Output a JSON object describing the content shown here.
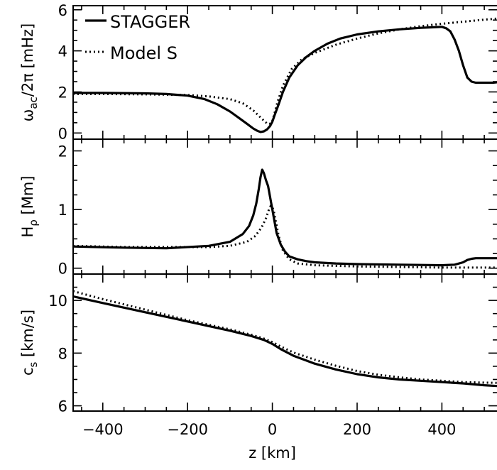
{
  "chart_data": [
    {
      "type": "line",
      "ylabel": "ω_ac/2π [mHz]",
      "ylabel_parts": {
        "main": "ω",
        "sub": "ac",
        "rest": "/2π [mHz]"
      },
      "xlim": [
        -470,
        530
      ],
      "ylim": [
        -0.3,
        6.2
      ],
      "yticks": [
        0,
        2,
        4,
        6
      ],
      "yminor_step": 0.5,
      "legend": {
        "placement": "top-left",
        "entries": [
          "STAGGER",
          "Model S"
        ]
      },
      "series": [
        {
          "name": "STAGGER",
          "style": "solid",
          "x": [
            -470,
            -400,
            -300,
            -250,
            -200,
            -160,
            -130,
            -100,
            -80,
            -60,
            -45,
            -35,
            -28,
            -20,
            -12,
            -5,
            0,
            5,
            15,
            25,
            40,
            60,
            80,
            100,
            130,
            160,
            200,
            250,
            300,
            350,
            380,
            400,
            410,
            420,
            430,
            440,
            450,
            460,
            470,
            480,
            500,
            520,
            530
          ],
          "y": [
            1.95,
            1.95,
            1.93,
            1.9,
            1.82,
            1.65,
            1.4,
            1.05,
            0.75,
            0.45,
            0.22,
            0.1,
            0.05,
            0.08,
            0.18,
            0.35,
            0.55,
            0.85,
            1.4,
            2.0,
            2.7,
            3.3,
            3.7,
            4.0,
            4.35,
            4.6,
            4.8,
            4.95,
            5.05,
            5.12,
            5.15,
            5.17,
            5.1,
            4.95,
            4.55,
            4.0,
            3.3,
            2.7,
            2.5,
            2.45,
            2.45,
            2.45,
            2.47
          ]
        },
        {
          "name": "Model S",
          "style": "dotted",
          "x": [
            -470,
            -400,
            -300,
            -200,
            -150,
            -100,
            -70,
            -45,
            -25,
            -12,
            -5,
            0,
            5,
            12,
            25,
            45,
            70,
            100,
            150,
            200,
            250,
            300,
            350,
            400,
            450,
            500,
            530
          ],
          "y": [
            1.9,
            1.9,
            1.88,
            1.85,
            1.78,
            1.65,
            1.45,
            1.1,
            0.7,
            0.45,
            0.45,
            0.6,
            0.95,
            1.5,
            2.3,
            3.1,
            3.6,
            3.9,
            4.3,
            4.6,
            4.85,
            5.05,
            5.2,
            5.32,
            5.42,
            5.52,
            5.57
          ]
        }
      ]
    },
    {
      "type": "line",
      "ylabel": "H_ρ [Mm]",
      "ylabel_parts": {
        "main": "H",
        "sub": "ρ",
        "rest": " [Mm]"
      },
      "xlim": [
        -470,
        530
      ],
      "ylim": [
        -0.1,
        2.2
      ],
      "yticks": [
        0,
        1,
        2
      ],
      "yminor_step": 0.25,
      "series": [
        {
          "name": "STAGGER",
          "style": "solid",
          "x": [
            -470,
            -350,
            -250,
            -150,
            -100,
            -70,
            -55,
            -45,
            -38,
            -32,
            -28,
            -24,
            -20,
            -15,
            -10,
            -5,
            0,
            5,
            10,
            20,
            30,
            40,
            60,
            80,
            100,
            150,
            200,
            300,
            400,
            430,
            450,
            460,
            470,
            480,
            500,
            530
          ],
          "y": [
            0.37,
            0.35,
            0.34,
            0.38,
            0.45,
            0.58,
            0.72,
            0.9,
            1.1,
            1.35,
            1.55,
            1.68,
            1.62,
            1.5,
            1.4,
            1.2,
            1.0,
            0.8,
            0.6,
            0.4,
            0.28,
            0.2,
            0.15,
            0.12,
            0.1,
            0.08,
            0.07,
            0.06,
            0.05,
            0.06,
            0.1,
            0.14,
            0.16,
            0.17,
            0.17,
            0.17
          ]
        },
        {
          "name": "Model S",
          "style": "dotted",
          "x": [
            -470,
            -350,
            -250,
            -150,
            -100,
            -60,
            -40,
            -25,
            -15,
            -8,
            -4,
            0,
            4,
            8,
            15,
            25,
            40,
            60,
            100,
            200,
            300,
            400,
            530
          ],
          "y": [
            0.38,
            0.36,
            0.36,
            0.36,
            0.38,
            0.45,
            0.55,
            0.7,
            0.85,
            1.0,
            1.06,
            1.05,
            0.95,
            0.8,
            0.55,
            0.3,
            0.15,
            0.08,
            0.05,
            0.03,
            0.02,
            0.01,
            0.01
          ]
        }
      ]
    },
    {
      "type": "line",
      "ylabel": "c_s [km/s]",
      "ylabel_parts": {
        "main": "c",
        "sub": "s",
        "rest": " [km/s]"
      },
      "xlabel": "z [km]",
      "xlim": [
        -470,
        530
      ],
      "ylim": [
        5.8,
        11.0
      ],
      "yticks": [
        6,
        8,
        10
      ],
      "yminor_step": 0.5,
      "xticks": [
        -400,
        -200,
        0,
        200,
        400
      ],
      "xminor_step": 50,
      "series": [
        {
          "name": "STAGGER",
          "style": "solid",
          "x": [
            -470,
            -400,
            -300,
            -200,
            -100,
            -50,
            -20,
            0,
            20,
            50,
            100,
            150,
            200,
            250,
            300,
            350,
            400,
            450,
            500,
            530
          ],
          "y": [
            10.15,
            9.9,
            9.55,
            9.2,
            8.85,
            8.65,
            8.5,
            8.35,
            8.15,
            7.9,
            7.6,
            7.38,
            7.2,
            7.08,
            7.0,
            6.95,
            6.9,
            6.85,
            6.78,
            6.75
          ]
        },
        {
          "name": "Model S",
          "style": "dotted",
          "x": [
            -470,
            -400,
            -300,
            -200,
            -100,
            -50,
            -20,
            0,
            20,
            50,
            100,
            150,
            200,
            250,
            300,
            350,
            400,
            450,
            500,
            530
          ],
          "y": [
            10.35,
            10.05,
            9.65,
            9.25,
            8.9,
            8.7,
            8.55,
            8.42,
            8.25,
            8.02,
            7.75,
            7.52,
            7.32,
            7.18,
            7.08,
            7.0,
            6.95,
            6.9,
            6.88,
            6.87
          ]
        }
      ]
    }
  ]
}
